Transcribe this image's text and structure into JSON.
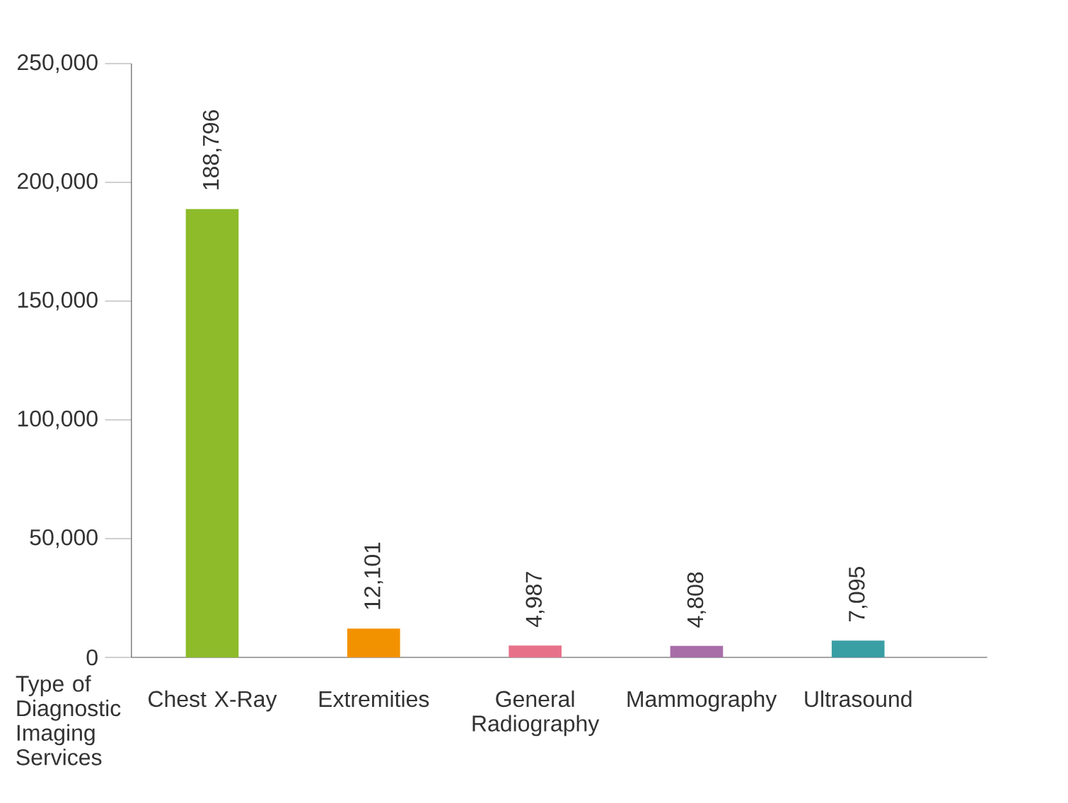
{
  "chart_data": {
    "type": "bar",
    "xlabel": "Type of Diagnostic Imaging Services",
    "categories": [
      "Chest X-Ray",
      "Extremities",
      "General Radiography",
      "Mammography",
      "Ultrasound"
    ],
    "values": [
      188796,
      12101,
      4987,
      4808,
      7095
    ],
    "colors": [
      "#8dbb2a",
      "#f39200",
      "#e8718a",
      "#a86ea8",
      "#3a9ea5"
    ],
    "value_labels": [
      "188,796",
      "12,101",
      "4,987",
      "4,808",
      "7,095"
    ],
    "ylim": [
      0,
      250000
    ],
    "yticks": [
      {
        "value": 0,
        "label": "0"
      },
      {
        "value": 50000,
        "label": "50,000"
      },
      {
        "value": 100000,
        "label": "100,000"
      },
      {
        "value": 150000,
        "label": "150,000"
      },
      {
        "value": 200000,
        "label": "200,000"
      },
      {
        "value": 250000,
        "label": "250,000"
      }
    ],
    "grid": false
  }
}
